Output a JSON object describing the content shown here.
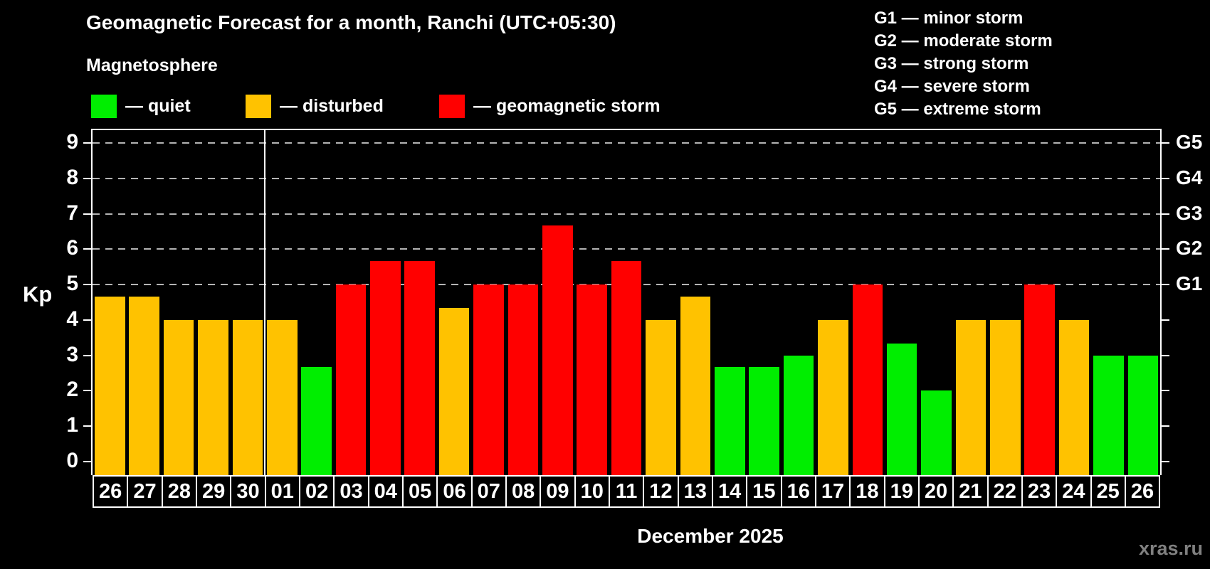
{
  "title": "Geomagnetic Forecast for a month, Ranchi (UTC+05:30)",
  "subtitle": "Magnetosphere",
  "legend": [
    {
      "key": "quiet",
      "label": "— quiet",
      "color": "#00ee00"
    },
    {
      "key": "disturbed",
      "label": "— disturbed",
      "color": "#ffc200"
    },
    {
      "key": "storm",
      "label": "— geomagnetic storm",
      "color": "#ff0000"
    }
  ],
  "g_legend": [
    "G1 — minor storm",
    "G2 — moderate storm",
    "G3 — strong storm",
    "G4 — severe storm",
    "G5 — extreme storm"
  ],
  "colors": {
    "quiet": "#00ee00",
    "disturbed": "#ffc200",
    "storm": "#ff0000",
    "axis": "#ffffff",
    "grid": "#b4b4b4",
    "watermark": "#808080",
    "background": "#000000"
  },
  "y_axis": {
    "label": "Kp",
    "ticks": [
      0,
      1,
      2,
      3,
      4,
      5,
      6,
      7,
      8,
      9
    ]
  },
  "x_label": "December 2025",
  "watermark": "xras.ru",
  "chart_data": {
    "type": "bar",
    "title": "Geomagnetic Forecast for a month, Ranchi (UTC+05:30)",
    "xlabel": "December 2025",
    "ylabel": "Kp",
    "ylim": [
      0,
      9
    ],
    "grid_levels": [
      5,
      6,
      7,
      8,
      9
    ],
    "right_axis": [
      {
        "level": 5,
        "label": "G1"
      },
      {
        "level": 6,
        "label": "G2"
      },
      {
        "level": 7,
        "label": "G3"
      },
      {
        "level": 8,
        "label": "G4"
      },
      {
        "level": 9,
        "label": "G5"
      }
    ],
    "month_separator_after_index": 4,
    "bars": [
      {
        "day": "26",
        "kp": 4.67,
        "status": "disturbed"
      },
      {
        "day": "27",
        "kp": 4.67,
        "status": "disturbed"
      },
      {
        "day": "28",
        "kp": 4.0,
        "status": "disturbed"
      },
      {
        "day": "29",
        "kp": 4.0,
        "status": "disturbed"
      },
      {
        "day": "30",
        "kp": 4.0,
        "status": "disturbed"
      },
      {
        "day": "01",
        "kp": 4.0,
        "status": "disturbed"
      },
      {
        "day": "02",
        "kp": 2.67,
        "status": "quiet"
      },
      {
        "day": "03",
        "kp": 5.0,
        "status": "storm"
      },
      {
        "day": "04",
        "kp": 5.67,
        "status": "storm"
      },
      {
        "day": "05",
        "kp": 5.67,
        "status": "storm"
      },
      {
        "day": "06",
        "kp": 4.33,
        "status": "disturbed"
      },
      {
        "day": "07",
        "kp": 5.0,
        "status": "storm"
      },
      {
        "day": "08",
        "kp": 5.0,
        "status": "storm"
      },
      {
        "day": "09",
        "kp": 6.67,
        "status": "storm"
      },
      {
        "day": "10",
        "kp": 5.0,
        "status": "storm"
      },
      {
        "day": "11",
        "kp": 5.67,
        "status": "storm"
      },
      {
        "day": "12",
        "kp": 4.0,
        "status": "disturbed"
      },
      {
        "day": "13",
        "kp": 4.67,
        "status": "disturbed"
      },
      {
        "day": "14",
        "kp": 2.67,
        "status": "quiet"
      },
      {
        "day": "15",
        "kp": 2.67,
        "status": "quiet"
      },
      {
        "day": "16",
        "kp": 3.0,
        "status": "quiet"
      },
      {
        "day": "17",
        "kp": 4.0,
        "status": "disturbed"
      },
      {
        "day": "18",
        "kp": 5.0,
        "status": "storm"
      },
      {
        "day": "19",
        "kp": 3.33,
        "status": "quiet"
      },
      {
        "day": "20",
        "kp": 2.0,
        "status": "quiet"
      },
      {
        "day": "21",
        "kp": 4.0,
        "status": "disturbed"
      },
      {
        "day": "22",
        "kp": 4.0,
        "status": "disturbed"
      },
      {
        "day": "23",
        "kp": 5.0,
        "status": "storm"
      },
      {
        "day": "24",
        "kp": 4.0,
        "status": "disturbed"
      },
      {
        "day": "25",
        "kp": 3.0,
        "status": "quiet"
      },
      {
        "day": "26",
        "kp": 3.0,
        "status": "quiet"
      }
    ]
  }
}
